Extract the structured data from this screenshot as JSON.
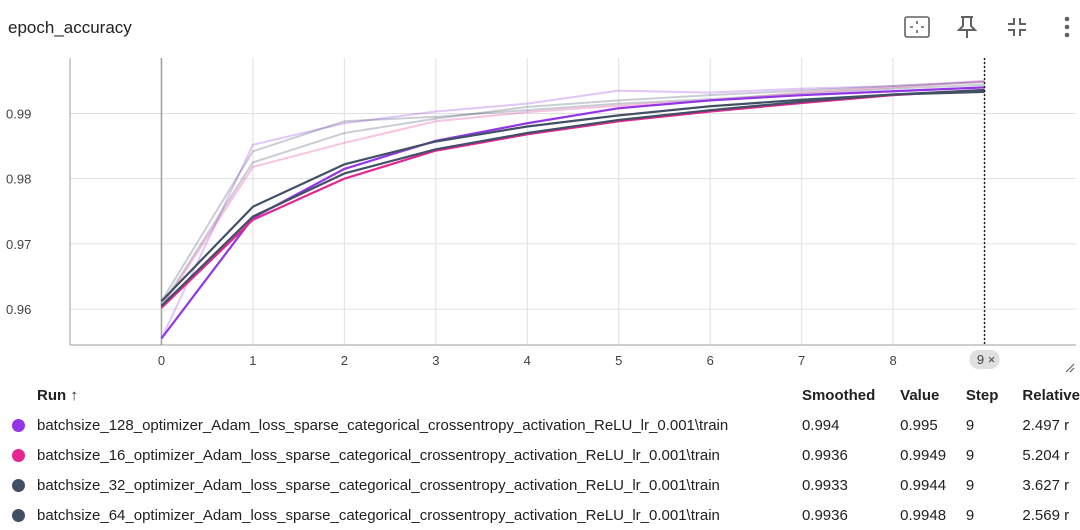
{
  "card": {
    "title": "epoch_accuracy"
  },
  "toolbar": {
    "fit_icon": "fit-domain-icon",
    "pin_icon": "pin-icon",
    "collapse_icon": "collapse-icon",
    "more_icon": "more-vert-icon"
  },
  "chart_data": {
    "type": "line",
    "title": "epoch_accuracy",
    "xlabel": "",
    "ylabel": "",
    "xlim": [
      -1,
      10
    ],
    "ylim": [
      0.9545,
      0.9985
    ],
    "x_ticks": [
      0,
      1,
      2,
      3,
      4,
      5,
      6,
      7,
      8,
      9
    ],
    "y_ticks": [
      0.96,
      0.97,
      0.98,
      0.99
    ],
    "y_tick_labels": [
      "0.96",
      "0.97",
      "0.98",
      "0.99"
    ],
    "grid": true,
    "hover_step": 9,
    "hover_label": "9",
    "x": [
      0,
      1,
      2,
      3,
      4,
      5,
      6,
      7,
      8,
      9
    ],
    "series": [
      {
        "name": "batchsize_128_optimizer_Adam_loss_sparse_categorical_crossentropy_activation_ReLU_lr_0.001\\train",
        "color": "#9334e6",
        "smoothed": [
          0.9555,
          0.974,
          0.9815,
          0.9858,
          0.9885,
          0.9908,
          0.992,
          0.9928,
          0.9934,
          0.994
        ],
        "raw": [
          0.9555,
          0.9852,
          0.9885,
          0.9903,
          0.9915,
          0.9935,
          0.9932,
          0.9938,
          0.9942,
          0.995
        ]
      },
      {
        "name": "batchsize_16_optimizer_Adam_loss_sparse_categorical_crossentropy_activation_ReLU_lr_0.001\\train",
        "color": "#e52592",
        "smoothed": [
          0.9602,
          0.9737,
          0.98,
          0.9843,
          0.9868,
          0.9888,
          0.9903,
          0.9916,
          0.9928,
          0.9936
        ],
        "raw": [
          0.9602,
          0.9818,
          0.9855,
          0.9888,
          0.9902,
          0.9912,
          0.992,
          0.9932,
          0.994,
          0.9949
        ]
      },
      {
        "name": "batchsize_32_optimizer_Adam_loss_sparse_categorical_crossentropy_activation_ReLU_lr_0.001\\train",
        "color": "#425066",
        "smoothed": [
          0.9612,
          0.9757,
          0.9822,
          0.9857,
          0.988,
          0.9897,
          0.9911,
          0.9921,
          0.9929,
          0.9933
        ],
        "raw": [
          0.9612,
          0.9842,
          0.9888,
          0.9895,
          0.9905,
          0.9915,
          0.9922,
          0.993,
          0.9938,
          0.9944
        ]
      },
      {
        "name": "batchsize_64_optimizer_Adam_loss_sparse_categorical_crossentropy_activation_ReLU_lr_0.001\\train",
        "color": "#425066",
        "smoothed": [
          0.9605,
          0.9742,
          0.9808,
          0.9845,
          0.987,
          0.989,
          0.9905,
          0.9918,
          0.9929,
          0.9936
        ],
        "raw": [
          0.9605,
          0.9825,
          0.987,
          0.9892,
          0.991,
          0.992,
          0.9928,
          0.9935,
          0.9942,
          0.9948
        ]
      }
    ]
  },
  "table": {
    "headers": {
      "run": "Run ↑",
      "smoothed": "Smoothed",
      "value": "Value",
      "step": "Step",
      "relative": "Relative"
    },
    "rows": [
      {
        "name": "batchsize_128_optimizer_Adam_loss_sparse_categorical_crossentropy_activation_ReLU_lr_0.001\\train",
        "color": "#9334e6",
        "smoothed": "0.994",
        "value": "0.995",
        "step": "9",
        "relative": "2.497 r"
      },
      {
        "name": "batchsize_16_optimizer_Adam_loss_sparse_categorical_crossentropy_activation_ReLU_lr_0.001\\train",
        "color": "#e52592",
        "smoothed": "0.9936",
        "value": "0.9949",
        "step": "9",
        "relative": "5.204 r"
      },
      {
        "name": "batchsize_32_optimizer_Adam_loss_sparse_categorical_crossentropy_activation_ReLU_lr_0.001\\train",
        "color": "#425066",
        "smoothed": "0.9933",
        "value": "0.9944",
        "step": "9",
        "relative": "3.627 r"
      },
      {
        "name": "batchsize_64_optimizer_Adam_loss_sparse_categorical_crossentropy_activation_ReLU_lr_0.001\\train",
        "color": "#425066",
        "smoothed": "0.9936",
        "value": "0.9948",
        "step": "9",
        "relative": "2.569 r"
      }
    ]
  }
}
